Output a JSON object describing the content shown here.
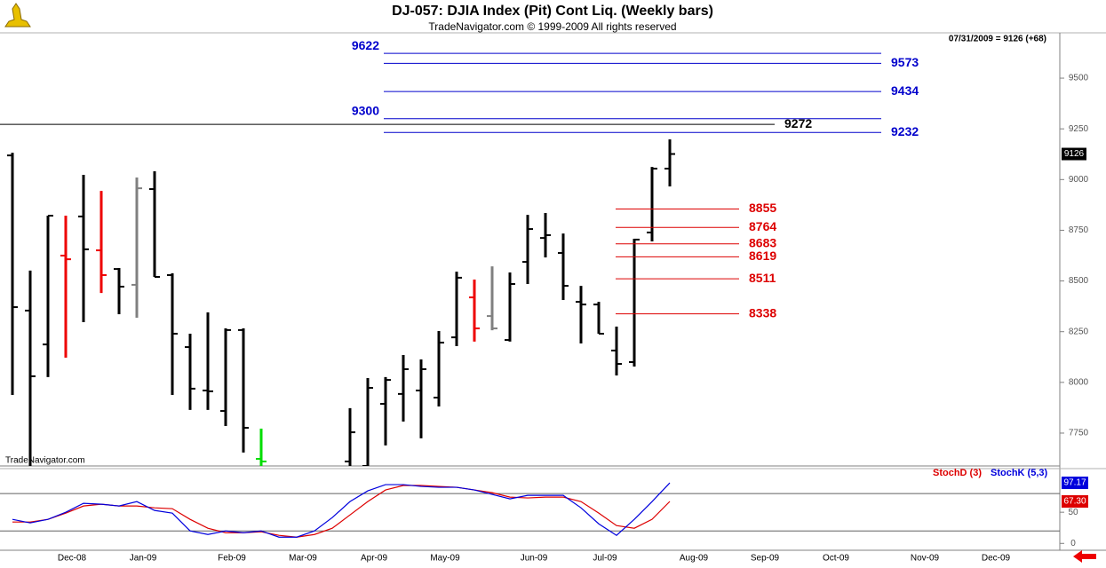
{
  "chart_data": [
    {
      "type": "ohlc",
      "title": "DJ-057:  DJIA Index (Pit) Cont Liq.  (Weekly bars)",
      "subtitle": "TradeNavigator.com © 1999-2009 All rights reserved",
      "annotation": "07/31/2009 = 9126 (+68)",
      "watermark": "TradeNavigator.com",
      "categories": [
        null,
        null,
        null,
        "Dec-08",
        null,
        null,
        null,
        "Jan-09",
        null,
        null,
        null,
        null,
        "Feb-09",
        null,
        null,
        null,
        "Mar-09",
        null,
        null,
        null,
        "Apr-09",
        null,
        null,
        null,
        "May-09",
        null,
        null,
        null,
        null,
        "Jun-09",
        null,
        null,
        null,
        "Jul-09",
        null,
        null,
        null,
        null,
        "Aug-09",
        null,
        null,
        null,
        "Sep-09",
        null,
        null,
        null,
        "Oct-09",
        null,
        null,
        null,
        null,
        "Nov-09",
        null,
        null,
        null,
        "Dec-09",
        null,
        null,
        null
      ],
      "open": [
        9119,
        8354,
        8187,
        8625,
        8818,
        8651,
        8559,
        8481,
        8953,
        8529,
        8174,
        7960,
        7859,
        8258,
        7623,
        null,
        null,
        null,
        null,
        7610,
        7588,
        7894,
        7943,
        7960,
        7925,
        8222,
        8419,
        8327,
        8209,
        8594,
        8712,
        8638,
        8397,
        8384,
        8157,
        8100,
        8739,
        9054,
        null,
        null,
        null,
        null,
        null,
        null,
        null,
        null,
        null,
        null,
        null,
        null,
        null,
        null,
        null,
        null,
        null,
        null,
        null,
        null,
        null
      ],
      "high": [
        9132,
        8551,
        8822,
        8822,
        9023,
        8944,
        8564,
        9010,
        9041,
        8538,
        8240,
        8345,
        8266,
        8266,
        7772,
        null,
        null,
        null,
        null,
        7873,
        8021,
        8026,
        8135,
        8113,
        8253,
        8546,
        8507,
        8572,
        8542,
        8826,
        8835,
        8734,
        8476,
        8397,
        8275,
        8708,
        9062,
        9198,
        null,
        null,
        null,
        null,
        null,
        null,
        null,
        null,
        null,
        null,
        null,
        null,
        null,
        null,
        null,
        null,
        null,
        null,
        null,
        null,
        null
      ],
      "low": [
        7938,
        7522,
        8026,
        8122,
        8297,
        8441,
        8336,
        8319,
        8520,
        7938,
        7864,
        7864,
        7785,
        7654,
        7566,
        null,
        null,
        null,
        null,
        7522,
        7566,
        7689,
        7807,
        7724,
        7881,
        8179,
        8201,
        8257,
        8201,
        8485,
        8616,
        8406,
        8192,
        8240,
        8034,
        8078,
        8695,
        8966,
        null,
        null,
        null,
        null,
        null,
        null,
        null,
        null,
        null,
        null,
        null,
        null,
        null,
        null,
        null,
        null,
        null,
        null,
        null,
        null,
        null
      ],
      "close": [
        8371,
        8030,
        8822,
        8607,
        8656,
        8529,
        8472,
        8957,
        8520,
        8240,
        7969,
        7956,
        8258,
        7776,
        7610,
        null,
        null,
        null,
        null,
        7754,
        7973,
        8012,
        8065,
        8065,
        8196,
        8516,
        8266,
        8266,
        8485,
        8756,
        8726,
        8476,
        8384,
        8240,
        8091,
        8704,
        9054,
        9126,
        null,
        null,
        null,
        null,
        null,
        null,
        null,
        null,
        null,
        null,
        null,
        null,
        null,
        null,
        null,
        null,
        null,
        null,
        null,
        null,
        null
      ],
      "bar_colors": [
        "#000000",
        "#000000",
        "#000000",
        "#ee0000",
        "#000000",
        "#ee0000",
        "#000000",
        "#808080",
        "#000000",
        "#000000",
        "#000000",
        "#000000",
        "#000000",
        "#000000",
        "#00dd00",
        null,
        null,
        null,
        null,
        "#000000",
        "#000000",
        "#000000",
        "#000000",
        "#000000",
        "#000000",
        "#000000",
        "#ee0000",
        "#808080",
        "#000000",
        "#000000",
        "#000000",
        "#000000",
        "#000000",
        "#000000",
        "#000000",
        "#000000",
        "#000000",
        "#000000",
        null,
        null,
        null,
        null,
        null,
        null,
        null,
        null,
        null,
        null,
        null,
        null,
        null,
        null,
        null,
        null,
        null,
        null,
        null,
        null,
        null
      ],
      "levels": [
        {
          "color": "#0000cc",
          "values": [
            9622,
            9573,
            9434,
            9300,
            9232
          ],
          "label_sides": [
            "left",
            "right",
            "right",
            "left",
            "right"
          ]
        },
        {
          "color": "#000000",
          "values": [
            9272
          ],
          "label_sides": [
            "right"
          ]
        },
        {
          "color": "#dd0000",
          "values": [
            8855,
            8764,
            8683,
            8619,
            8511,
            8338
          ],
          "label_sides": [
            "right",
            "right",
            "right",
            "right",
            "right",
            "right"
          ]
        }
      ],
      "ylim": [
        7588,
        9719
      ],
      "yticks": [
        7750,
        8000,
        8250,
        8500,
        8750,
        9000,
        9250,
        9500
      ]
    },
    {
      "type": "line",
      "series": [
        {
          "name": "StochD (3)",
          "color": "#dd0000",
          "values": [
            34.3,
            34.3,
            38.6,
            48.6,
            60,
            62.9,
            60,
            60,
            57.1,
            55.7,
            38.6,
            24.3,
            17.1,
            17.1,
            18.6,
            12.9,
            10,
            14.3,
            24.3,
            45.7,
            67.1,
            85.7,
            92.9,
            92.9,
            91.4,
            90,
            85.7,
            81.4,
            74.3,
            72.9,
            74.3,
            74.3,
            67.1,
            48.6,
            28.6,
            24.3,
            38.6,
            67.3,
            null,
            null,
            null,
            null,
            null,
            null,
            null,
            null,
            null,
            null,
            null,
            null,
            null,
            null,
            null,
            null,
            null,
            null,
            null,
            null,
            null
          ],
          "value_labels": [
            null,
            null,
            null,
            null,
            null,
            null,
            null,
            null,
            null,
            null,
            null,
            null,
            null,
            null,
            null,
            null,
            null,
            null,
            null,
            null,
            null,
            null,
            null,
            null,
            null,
            null,
            null,
            null,
            null,
            null,
            null,
            null,
            null,
            null,
            null,
            null,
            null,
            "67.30",
            null,
            null,
            null,
            null,
            null,
            null,
            null,
            null,
            null,
            null,
            null,
            null,
            null,
            null,
            null,
            null,
            null,
            null,
            null,
            null,
            null
          ]
        },
        {
          "name": "StochK (5,3)",
          "color": "#0000dd",
          "values": [
            38.6,
            32.9,
            38.6,
            50,
            64.3,
            62.9,
            60,
            67.1,
            52.9,
            48.6,
            20,
            14.3,
            20,
            17.1,
            20,
            10,
            10,
            20,
            41.4,
            67.1,
            84.3,
            94.3,
            94.3,
            91.4,
            90,
            90,
            85.7,
            78.6,
            71.4,
            77.1,
            77.1,
            77.1,
            57.1,
            31.4,
            12.9,
            38.6,
            67.1,
            97.17,
            null,
            null,
            null,
            null,
            null,
            null,
            null,
            null,
            null,
            null,
            null,
            null,
            null,
            null,
            null,
            null,
            null,
            null,
            null,
            null,
            null
          ]
        }
      ],
      "ylim": [
        -11,
        120
      ],
      "yticks": [
        0,
        50
      ],
      "guides": [
        20,
        80
      ]
    }
  ]
}
